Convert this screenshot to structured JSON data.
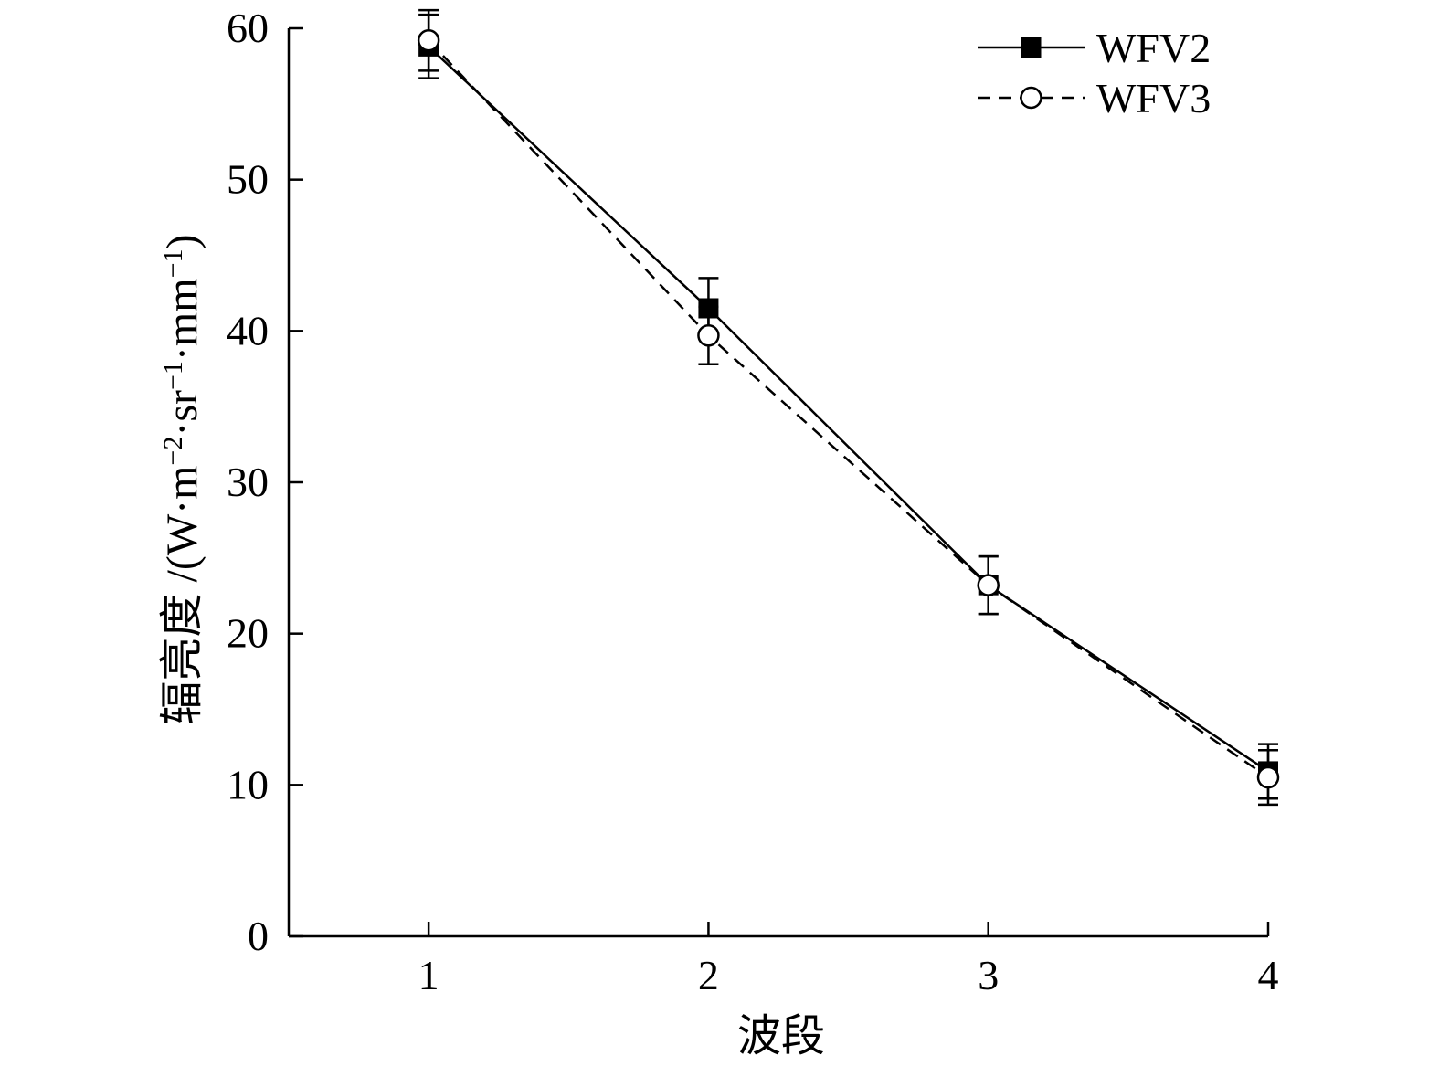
{
  "chart_data": {
    "type": "line",
    "title": "",
    "xlabel": "波段",
    "ylabel_prefix": "辐亮度 /(W·m",
    "ylabel_parts": [
      {
        "t": "辐亮度 /(W·m",
        "sup": false
      },
      {
        "t": "−2",
        "sup": true
      },
      {
        "t": "·sr",
        "sup": false
      },
      {
        "t": "−1",
        "sup": true
      },
      {
        "t": "·mm",
        "sup": false
      },
      {
        "t": "−1",
        "sup": true
      },
      {
        "t": ")",
        "sup": false
      }
    ],
    "x": [
      1,
      2,
      3,
      4
    ],
    "xticks": [
      "1",
      "2",
      "3",
      "4"
    ],
    "xlim": [
      0.5,
      4
    ],
    "ylim": [
      0,
      60
    ],
    "yticks": [
      "0",
      "10",
      "20",
      "30",
      "40",
      "50",
      "60"
    ],
    "legend_position": "top-right",
    "grid": false,
    "series": [
      {
        "name": "WFV2",
        "values": [
          58.8,
          41.5,
          23.2,
          10.9
        ],
        "errors": [
          2.1,
          2.0,
          1.9,
          1.8
        ],
        "marker": "filled-square",
        "line": "solid",
        "color": "#000000"
      },
      {
        "name": "WFV3",
        "values": [
          59.2,
          39.7,
          23.2,
          10.5
        ],
        "errors": [
          2.0,
          1.9,
          1.9,
          1.8
        ],
        "marker": "open-circle",
        "line": "dashed",
        "color": "#000000"
      }
    ]
  }
}
